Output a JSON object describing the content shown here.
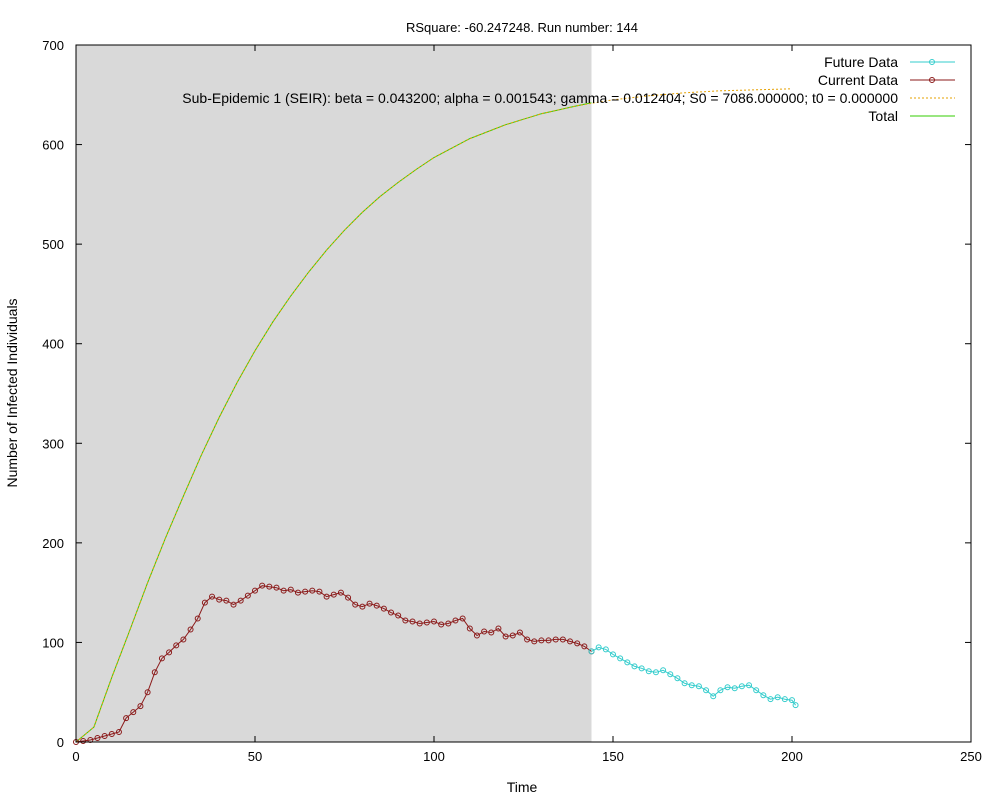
{
  "chart_data": {
    "type": "line",
    "title": "RSquare: -60.247248. Run number: 144",
    "xlabel": "Time",
    "ylabel": "Number of Infected Individuals",
    "xlim": [
      0,
      250
    ],
    "ylim": [
      0,
      700
    ],
    "x_ticks": [
      0,
      50,
      100,
      150,
      200,
      250
    ],
    "y_ticks": [
      0,
      100,
      200,
      300,
      400,
      500,
      600,
      700
    ],
    "shaded_region": {
      "x_start": 0,
      "x_end": 144,
      "color": "#d9d9d9"
    },
    "legend_position": "top-right",
    "series": [
      {
        "name": "Future Data",
        "color": "#33cccc",
        "marker": "circle",
        "x": [
          144,
          146,
          148,
          150,
          152,
          154,
          156,
          158,
          160,
          162,
          164,
          166,
          168,
          170,
          172,
          174,
          176,
          178,
          180,
          182,
          184,
          186,
          188,
          190,
          192,
          194,
          196,
          198,
          200,
          201
        ],
        "y": [
          91,
          95,
          93,
          88,
          84,
          80,
          76,
          74,
          71,
          70,
          72,
          68,
          64,
          59,
          57,
          56,
          52,
          46,
          52,
          55,
          54,
          56,
          57,
          52,
          47,
          43,
          45,
          43,
          42,
          37
        ]
      },
      {
        "name": "Current Data",
        "color": "#8b1a1a",
        "marker": "circle",
        "x": [
          0,
          2,
          4,
          6,
          8,
          10,
          12,
          14,
          16,
          18,
          20,
          22,
          24,
          26,
          28,
          30,
          32,
          34,
          36,
          38,
          40,
          42,
          44,
          46,
          48,
          50,
          52,
          54,
          56,
          58,
          60,
          62,
          64,
          66,
          68,
          70,
          72,
          74,
          76,
          78,
          80,
          82,
          84,
          86,
          88,
          90,
          92,
          94,
          96,
          98,
          100,
          102,
          104,
          106,
          108,
          110,
          112,
          114,
          116,
          118,
          120,
          122,
          124,
          126,
          128,
          130,
          132,
          134,
          136,
          138,
          140,
          142,
          144
        ],
        "y": [
          0,
          1,
          2,
          4,
          6,
          8,
          10,
          24,
          30,
          36,
          50,
          70,
          84,
          90,
          97,
          103,
          113,
          124,
          140,
          146,
          143,
          142,
          138,
          142,
          147,
          152,
          157,
          156,
          155,
          152,
          153,
          150,
          151,
          152,
          151,
          146,
          148,
          150,
          145,
          138,
          136,
          139,
          137,
          134,
          130,
          127,
          122,
          121,
          119,
          120,
          121,
          118,
          119,
          122,
          124,
          114,
          107,
          111,
          110,
          114,
          106,
          107,
          110,
          103,
          101,
          102,
          102,
          103,
          103,
          101,
          99,
          96,
          91
        ]
      },
      {
        "name": "Sub-Epidemic 1 (SEIR): beta = 0.043200; alpha = 0.001543; gamma = 0.012404; S0 = 7086.000000; t0 = 0.000000",
        "color": "#e6a100",
        "marker": "none",
        "dashed": true,
        "x": [
          0,
          5,
          10,
          15,
          20,
          25,
          30,
          35,
          40,
          45,
          50,
          55,
          60,
          65,
          70,
          75,
          80,
          85,
          90,
          95,
          100,
          110,
          120,
          130,
          140,
          150,
          160,
          170,
          180,
          190,
          200
        ],
        "y": [
          0,
          15,
          65,
          112,
          160,
          205,
          247,
          288,
          326,
          361,
          393,
          422,
          448,
          472,
          494,
          514,
          532,
          548,
          562,
          575,
          587,
          606,
          620,
          631,
          639,
          645,
          649,
          652,
          654,
          655,
          656
        ]
      },
      {
        "name": "Total",
        "color": "#33cc00",
        "marker": "none",
        "x": [
          0,
          5,
          10,
          15,
          20,
          25,
          30,
          35,
          40,
          45,
          50,
          55,
          60,
          65,
          70,
          75,
          80,
          85,
          90,
          95,
          100,
          110,
          120,
          130,
          140,
          144
        ],
        "y": [
          0,
          15,
          65,
          112,
          160,
          205,
          247,
          288,
          326,
          361,
          393,
          422,
          448,
          472,
          494,
          514,
          532,
          548,
          562,
          575,
          587,
          606,
          620,
          631,
          639,
          642
        ]
      }
    ]
  }
}
